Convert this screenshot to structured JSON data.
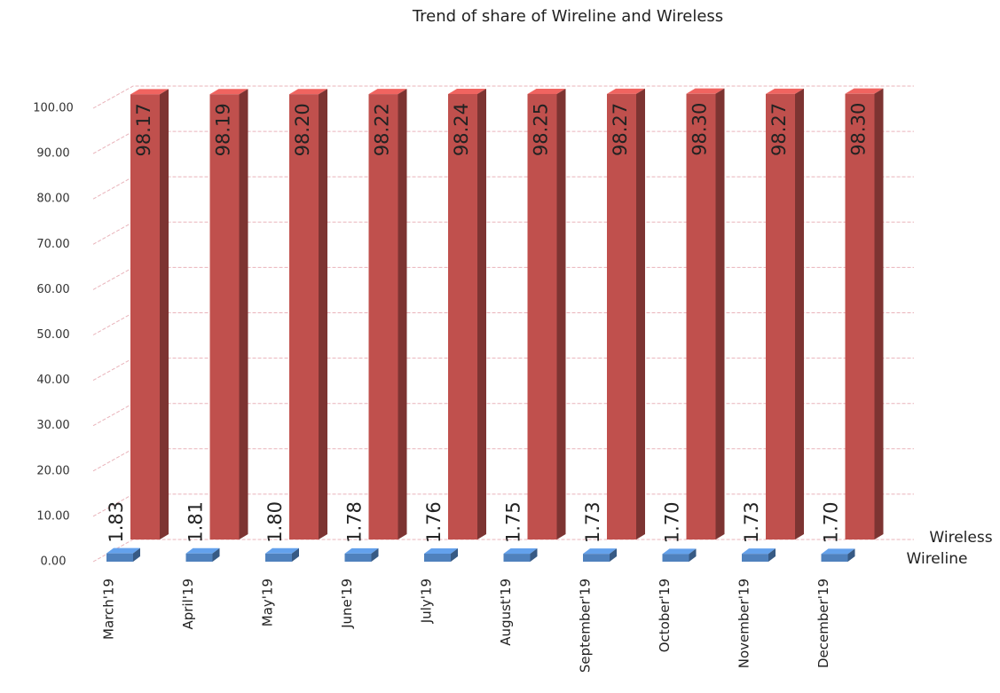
{
  "chart_data": {
    "type": "bar3d",
    "title": "Trend of  share of Wireline and Wireless",
    "categories": [
      "March'19",
      "April'19",
      "May'19",
      "June'19",
      "July'19",
      "August'19",
      "September'19",
      "October'19",
      "November'19",
      "December'19"
    ],
    "series": [
      {
        "name": "Wireline",
        "color": "#4f81bd",
        "values": [
          1.83,
          1.81,
          1.8,
          1.78,
          1.76,
          1.75,
          1.73,
          1.7,
          1.73,
          1.7
        ],
        "value_labels": [
          "1.83",
          "1.81",
          "1.80",
          "1.78",
          "1.76",
          "1.75",
          "1.73",
          "1.70",
          "1.73",
          "1.70"
        ]
      },
      {
        "name": "Wireless",
        "color": "#c0504d",
        "values": [
          98.17,
          98.19,
          98.2,
          98.22,
          98.24,
          98.25,
          98.27,
          98.3,
          98.27,
          98.3
        ],
        "value_labels": [
          "98.17",
          "98.19",
          "98.20",
          "98.22",
          "98.24",
          "98.25",
          "98.27",
          "98.30",
          "98.27",
          "98.30"
        ]
      }
    ],
    "ylim": [
      0,
      100
    ],
    "yticks": [
      {
        "value": 0,
        "label": "0.00"
      },
      {
        "value": 10,
        "label": "10.00"
      },
      {
        "value": 20,
        "label": "20.00"
      },
      {
        "value": 30,
        "label": "30.00"
      },
      {
        "value": 40,
        "label": "40.00"
      },
      {
        "value": 50,
        "label": "50.00"
      },
      {
        "value": 60,
        "label": "60.00"
      },
      {
        "value": 70,
        "label": "70.00"
      },
      {
        "value": 80,
        "label": "80.00"
      },
      {
        "value": 90,
        "label": "90.00"
      },
      {
        "value": 100,
        "label": "100.00"
      }
    ],
    "grid": true
  }
}
